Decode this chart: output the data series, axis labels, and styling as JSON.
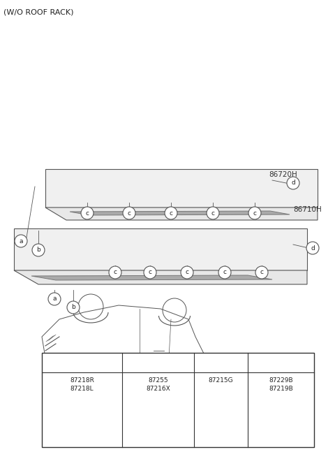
{
  "title": "(W/O ROOF RACK)",
  "bg_color": "#ffffff",
  "label_86720H": "86720H",
  "label_86710H": "86710H",
  "part_a_codes": "87218R\n87218L",
  "part_b_codes": "87255\n87216X",
  "part_c_code": "87215G",
  "part_d_codes": "87229B\n87219B",
  "circle_labels": [
    "a",
    "b",
    "c",
    "d"
  ],
  "line_color": "#555555",
  "fill_color": "#cccccc",
  "dark_fill": "#888888",
  "table_border": "#333333"
}
